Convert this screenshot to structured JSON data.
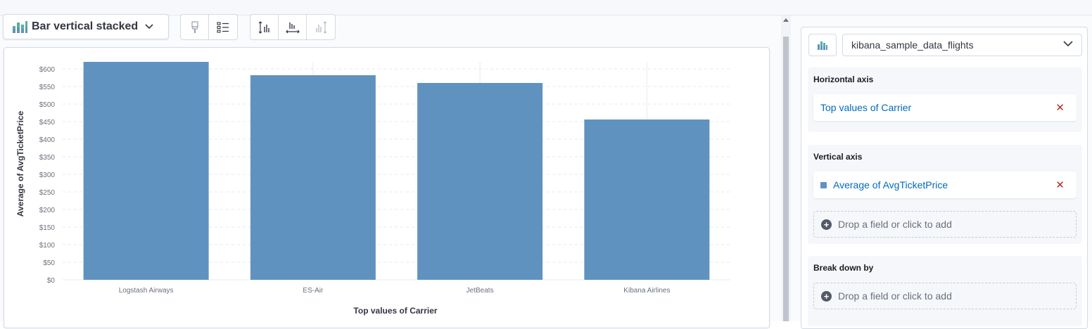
{
  "toolbar": {
    "chart_type_label": "Bar vertical stacked",
    "chart_type_icon": "bar-vertical-stacked-icon",
    "group1": [
      "paint-brush-icon",
      "legend-list-icon"
    ],
    "group2": [
      "left-axis-icon",
      "bottom-axis-icon",
      "right-axis-icon"
    ]
  },
  "sidebar": {
    "datasource_icon": "chart-type-icon",
    "datasource": "kibana_sample_data_flights",
    "horizontal_axis": {
      "title": "Horizontal axis",
      "dimension": "Top values of Carrier"
    },
    "vertical_axis": {
      "title": "Vertical axis",
      "dimension": "Average of AvgTicketPrice",
      "swatch_color": "#6092c0",
      "drop_label": "Drop a field or click to add"
    },
    "break_down_by": {
      "title": "Break down by",
      "drop_label": "Drop a field or click to add"
    }
  },
  "chart_data": {
    "type": "bar",
    "categories": [
      "Logstash Airways",
      "ES-Air",
      "JetBeats",
      "Kibana Airlines"
    ],
    "values": [
      622,
      582,
      560,
      456
    ],
    "xlabel": "Top values of Carrier",
    "ylabel": "Average of AvgTicketPrice",
    "yticks": [
      "$0",
      "$50",
      "$100",
      "$150",
      "$200",
      "$250",
      "$300",
      "$350",
      "$400",
      "$450",
      "$500",
      "$550",
      "$600"
    ],
    "ylim": [
      0,
      620
    ],
    "grid": true,
    "bar_color": "#6092c0"
  }
}
